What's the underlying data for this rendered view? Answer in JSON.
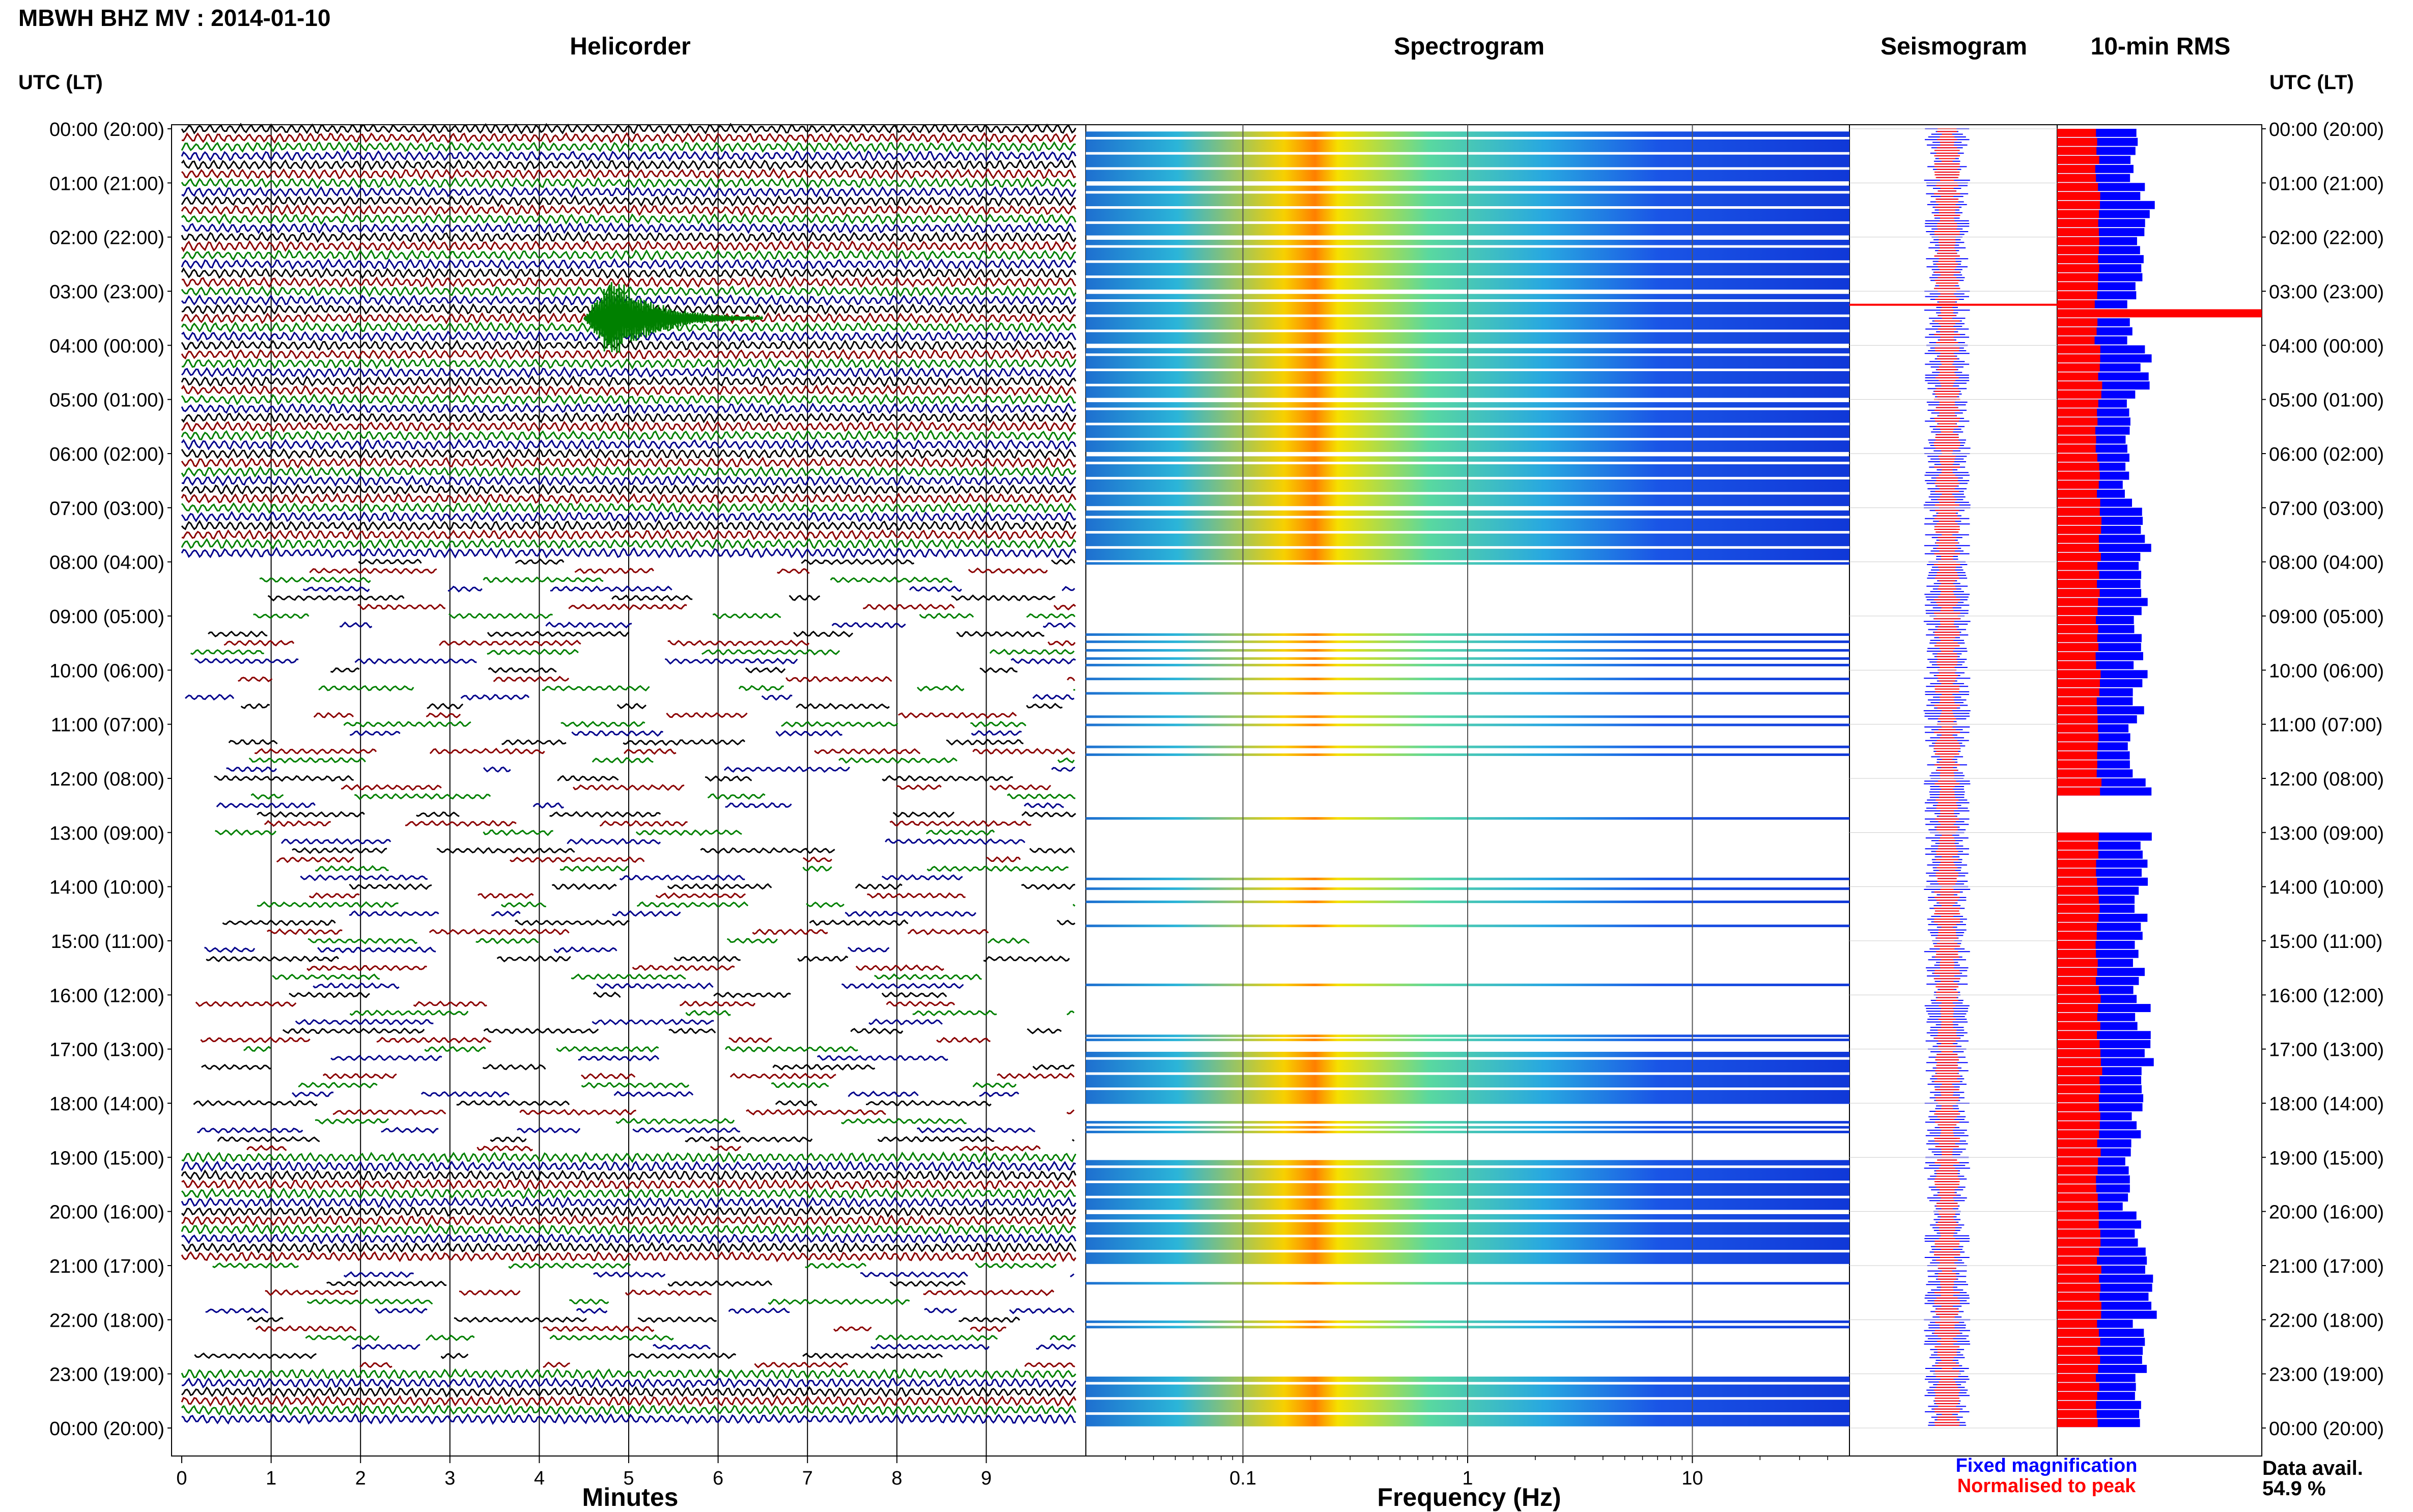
{
  "header": {
    "title": "MBWH BHZ MV : 2014-01-10",
    "left_axis_title": "UTC (LT)",
    "right_axis_title": "UTC (LT)"
  },
  "panels": {
    "helicorder": "Helicorder",
    "spectrogram": "Spectrogram",
    "seismogram": "Seismogram",
    "rms": "10-min RMS"
  },
  "axes": {
    "helicorder_xlabel": "Minutes",
    "spectrogram_xlabel": "Frequency (Hz)"
  },
  "legend": {
    "fixed": "Fixed magnification",
    "normalised": "Normalised to peak",
    "fixed_color": "#0000ff",
    "normalised_color": "#ff0000"
  },
  "data_availability": {
    "label": "Data avail.",
    "value": "54.9 %"
  },
  "colors": {
    "trace_cycle": [
      "#000000",
      "#8b0000",
      "#008000",
      "#00008b"
    ],
    "event_trace": "#008000",
    "rms_fixed": "#0000ff",
    "rms_normalised": "#ff0000"
  },
  "chart_data": [
    {
      "type": "line",
      "title": "Helicorder",
      "xlabel": "Minutes",
      "xlim": [
        0,
        10
      ],
      "x_ticks": [
        "0",
        "1",
        "2",
        "3",
        "4",
        "5",
        "6",
        "7",
        "8",
        "9"
      ],
      "y_tick_labels": [
        "00:00 (20:00)",
        "01:00 (21:00)",
        "02:00 (22:00)",
        "03:00 (23:00)",
        "04:00 (00:00)",
        "05:00 (01:00)",
        "06:00 (02:00)",
        "07:00 (03:00)",
        "08:00 (04:00)",
        "09:00 (05:00)",
        "10:00 (06:00)",
        "11:00 (07:00)",
        "12:00 (08:00)",
        "13:00 (09:00)",
        "14:00 (10:00)",
        "15:00 (11:00)",
        "16:00 (12:00)",
        "17:00 (13:00)",
        "18:00 (14:00)",
        "19:00 (15:00)",
        "20:00 (16:00)",
        "21:00 (17:00)",
        "22:00 (18:00)",
        "23:00 (19:00)",
        "00:00 (20:00)"
      ],
      "lines_per_hour": 6,
      "event": {
        "utc": "03:30",
        "minute_start": 4.5,
        "minute_end": 6.5
      }
    },
    {
      "type": "heatmap",
      "title": "Spectrogram",
      "xlabel": "Frequency (Hz)",
      "x_scale": "log",
      "xlim": [
        0.02,
        50
      ],
      "x_ticks": [
        "0.1",
        "1",
        "10"
      ],
      "dominant_band_hz": [
        0.15,
        0.3
      ],
      "active_hours": [
        0,
        1,
        2,
        3,
        4,
        5,
        6,
        7,
        17,
        19,
        20,
        23
      ]
    },
    {
      "type": "line",
      "title": "Seismogram",
      "series": [
        {
          "name": "Fixed magnification",
          "color": "#0000ff"
        },
        {
          "name": "Normalised to peak",
          "color": "#ff0000"
        }
      ]
    },
    {
      "type": "bar",
      "title": "10-min RMS",
      "orientation": "horizontal",
      "series": [
        {
          "name": "Fixed magnification",
          "values": [
            0.55,
            0.62,
            0.58,
            0.52,
            0.6,
            0.5,
            0.48,
            0.6,
            0.62,
            0.55,
            0.58,
            0.5,
            0.6,
            0.64,
            0.58,
            0.56,
            0.6,
            0.62,
            0.55,
            0.5,
            0.6,
            0.66,
            0.58,
            0.55
          ]
        },
        {
          "name": "Normalised to peak",
          "values": [
            0.28,
            0.29,
            0.28,
            0.27,
            0.3,
            0.28,
            0.29,
            0.3,
            0.29,
            0.28,
            0.29,
            0.29,
            0.3,
            0.28,
            0.29,
            0.28,
            0.29,
            0.3,
            0.29,
            0.28,
            0.29,
            0.3,
            0.29,
            0.28
          ]
        }
      ],
      "peak_event": {
        "utc": "03:30",
        "value": 1.0
      },
      "gap_hours": [
        12
      ]
    }
  ]
}
